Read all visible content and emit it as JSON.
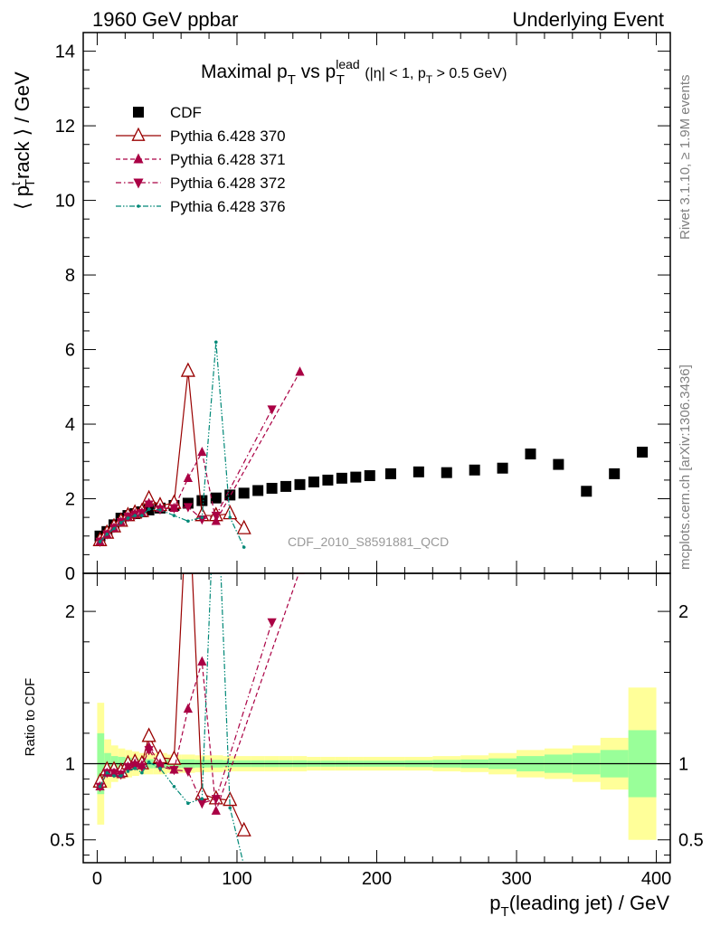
{
  "header": {
    "left": "1960 GeV ppbar",
    "right": "Underlying Event"
  },
  "side_labels": {
    "rivet": "Rivet 3.1.10, ≥ 1.9M events",
    "mcplots": "mcplots.cern.ch [arXiv:1306.3436]"
  },
  "chart_data": [
    {
      "type": "scatter",
      "panel": "main",
      "title_parts": {
        "main": "Maximal p",
        "sub1": "T",
        "vs": " vs p",
        "sup": "lead",
        "sub2": "T",
        "cond_a": " (|η| < 1, p",
        "cond_sub": "T",
        "cond_b": " > 0.5 GeV)"
      },
      "ylabel_parts": {
        "a": "⟨ p",
        "sup": "t",
        "sub": "T",
        "b": "rack ⟩ / GeV"
      },
      "analysis_label": "CDF_2010_S8591881_QCD",
      "xlim": [
        -10,
        410
      ],
      "ylim": [
        0,
        14.5
      ],
      "yticks": [
        0,
        2,
        4,
        6,
        8,
        10,
        12,
        14
      ],
      "xticks": [
        0,
        100,
        200,
        300,
        400
      ],
      "legend_position": "top-left",
      "series": [
        {
          "name": "CDF",
          "color": "#000000",
          "marker": "square",
          "x": [
            2,
            7,
            12,
            17,
            22,
            27,
            32,
            37,
            45,
            55,
            65,
            75,
            85,
            95,
            105,
            115,
            125,
            135,
            145,
            155,
            165,
            175,
            185,
            195,
            210,
            230,
            250,
            270,
            290,
            310,
            330,
            350,
            370,
            390
          ],
          "y": [
            1.0,
            1.12,
            1.3,
            1.48,
            1.55,
            1.6,
            1.65,
            1.7,
            1.75,
            1.82,
            1.88,
            1.95,
            2.02,
            2.1,
            2.15,
            2.22,
            2.28,
            2.33,
            2.38,
            2.45,
            2.5,
            2.55,
            2.58,
            2.62,
            2.67,
            2.72,
            2.7,
            2.77,
            2.82,
            3.2,
            2.92,
            2.2,
            2.67,
            3.25
          ]
        },
        {
          "name": "Pythia 6.428 370",
          "color": "#990000",
          "marker": "open-triangle-up",
          "line": "solid",
          "x": [
            2,
            7,
            12,
            17,
            22,
            27,
            32,
            37,
            45,
            55,
            65,
            75,
            85,
            95,
            105
          ],
          "y": [
            0.88,
            1.08,
            1.25,
            1.4,
            1.55,
            1.62,
            1.66,
            2.0,
            1.82,
            1.88,
            5.42,
            1.55,
            1.55,
            1.6,
            1.2
          ]
        },
        {
          "name": "Pythia 6.428 371",
          "color": "#aa0044",
          "marker": "filled-triangle-up",
          "line": "dashed",
          "x": [
            2,
            7,
            12,
            17,
            22,
            27,
            32,
            37,
            45,
            55,
            65,
            75,
            85,
            145
          ],
          "y": [
            0.85,
            1.05,
            1.22,
            1.38,
            1.52,
            1.6,
            1.63,
            1.88,
            1.75,
            1.75,
            2.55,
            3.25,
            1.4,
            5.4
          ]
        },
        {
          "name": "Pythia 6.428 372",
          "color": "#aa0044",
          "marker": "filled-triangle-down",
          "line": "dashdot",
          "x": [
            2,
            7,
            12,
            17,
            22,
            27,
            32,
            37,
            45,
            55,
            65,
            75,
            85,
            125
          ],
          "y": [
            0.85,
            1.05,
            1.22,
            1.38,
            1.52,
            1.58,
            1.62,
            1.85,
            1.72,
            1.75,
            1.78,
            1.45,
            1.55,
            4.4
          ]
        },
        {
          "name": "Pythia 6.428 376",
          "color": "#008877",
          "marker": "small-dot",
          "line": "dashdotdot",
          "x": [
            2,
            7,
            12,
            17,
            22,
            27,
            32,
            37,
            45,
            55,
            65,
            75,
            85,
            95,
            105
          ],
          "y": [
            0.85,
            1.05,
            1.2,
            1.36,
            1.48,
            1.55,
            1.55,
            1.72,
            1.7,
            1.55,
            1.4,
            1.5,
            6.2,
            1.5,
            0.7
          ]
        }
      ]
    },
    {
      "type": "line",
      "panel": "ratio",
      "ylabel": "Ratio to CDF",
      "xlabel_parts": {
        "a": "p",
        "sub": "T",
        "b": "(leading jet) / GeV"
      },
      "xlim": [
        -10,
        410
      ],
      "ylim": [
        0.35,
        2.25
      ],
      "yticks": [
        0.5,
        1,
        2
      ],
      "reference_band": {
        "x_edges": [
          0,
          5,
          10,
          15,
          20,
          25,
          30,
          35,
          40,
          50,
          60,
          70,
          80,
          90,
          100,
          110,
          120,
          130,
          140,
          150,
          160,
          170,
          180,
          190,
          200,
          220,
          240,
          260,
          280,
          300,
          320,
          340,
          360,
          380,
          400
        ],
        "outer_half_width": [
          0.4,
          0.16,
          0.12,
          0.1,
          0.09,
          0.08,
          0.07,
          0.07,
          0.07,
          0.06,
          0.06,
          0.055,
          0.055,
          0.05,
          0.05,
          0.05,
          0.05,
          0.05,
          0.05,
          0.045,
          0.045,
          0.045,
          0.045,
          0.045,
          0.045,
          0.045,
          0.05,
          0.055,
          0.07,
          0.09,
          0.1,
          0.12,
          0.17,
          0.5
        ],
        "inner_half_width": [
          0.2,
          0.07,
          0.05,
          0.045,
          0.04,
          0.035,
          0.03,
          0.03,
          0.03,
          0.028,
          0.028,
          0.025,
          0.025,
          0.022,
          0.022,
          0.022,
          0.022,
          0.022,
          0.022,
          0.02,
          0.02,
          0.02,
          0.02,
          0.02,
          0.02,
          0.022,
          0.025,
          0.028,
          0.035,
          0.05,
          0.06,
          0.07,
          0.09,
          0.22
        ],
        "outer_color": "#ffff99",
        "inner_color": "#99ff99"
      },
      "series": [
        {
          "name": "Pythia 6.428 370",
          "x": [
            2,
            7,
            12,
            17,
            22,
            27,
            32,
            37,
            45,
            55,
            65,
            75,
            85,
            95,
            105
          ],
          "y": [
            0.88,
            0.96,
            0.96,
            0.95,
            1.0,
            1.01,
            1.0,
            1.18,
            1.04,
            1.03,
            2.88,
            0.8,
            0.77,
            0.76,
            0.56
          ]
        },
        {
          "name": "Pythia 6.428 371",
          "x": [
            2,
            7,
            12,
            17,
            22,
            27,
            32,
            37,
            45,
            55,
            65,
            75,
            85,
            145
          ],
          "y": [
            0.85,
            0.94,
            0.94,
            0.93,
            0.98,
            1.0,
            0.99,
            1.11,
            1.0,
            0.96,
            1.36,
            1.67,
            0.69,
            2.27
          ]
        },
        {
          "name": "Pythia 6.428 372",
          "x": [
            2,
            7,
            12,
            17,
            22,
            27,
            32,
            37,
            45,
            55,
            65,
            75,
            85,
            125
          ],
          "y": [
            0.85,
            0.94,
            0.94,
            0.93,
            0.98,
            0.99,
            0.98,
            1.09,
            0.98,
            0.96,
            0.95,
            0.74,
            0.77,
            1.93
          ]
        },
        {
          "name": "Pythia 6.428 376",
          "x": [
            2,
            7,
            12,
            17,
            22,
            27,
            32,
            37,
            45,
            55,
            65,
            75,
            85,
            95,
            105
          ],
          "y": [
            0.85,
            0.94,
            0.92,
            0.92,
            0.95,
            0.97,
            0.94,
            1.01,
            0.97,
            0.85,
            0.74,
            0.77,
            3.07,
            0.71,
            0.33
          ]
        }
      ]
    }
  ]
}
